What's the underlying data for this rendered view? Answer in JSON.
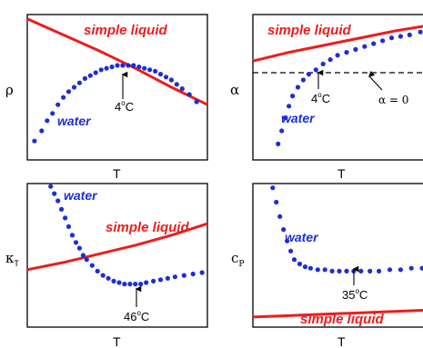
{
  "colors": {
    "liquid": "#ee1c1c",
    "water": "#1a2fd6",
    "axis": "#000000"
  },
  "chart_data": [
    {
      "type": "line",
      "ylabel": "ρ",
      "xlabel": "T",
      "xlim": [
        0,
        1
      ],
      "ylim": [
        0,
        1
      ],
      "series": [
        {
          "name": "simple liquid",
          "kind": "line",
          "x": [
            0,
            0.2,
            0.4,
            0.6,
            0.8,
            1.0
          ],
          "y": [
            0.97,
            0.86,
            0.75,
            0.63,
            0.5,
            0.38
          ]
        },
        {
          "name": "water",
          "kind": "scatter",
          "x": [
            0.04,
            0.08,
            0.11,
            0.14,
            0.17,
            0.2,
            0.23,
            0.26,
            0.29,
            0.32,
            0.35,
            0.38,
            0.41,
            0.44,
            0.47,
            0.5,
            0.53,
            0.56,
            0.59,
            0.62,
            0.65,
            0.68,
            0.71,
            0.74,
            0.77,
            0.8,
            0.83,
            0.86,
            0.9,
            0.94
          ],
          "y": [
            0.13,
            0.2,
            0.27,
            0.32,
            0.38,
            0.43,
            0.47,
            0.5,
            0.53,
            0.56,
            0.58,
            0.6,
            0.62,
            0.63,
            0.64,
            0.65,
            0.65,
            0.65,
            0.65,
            0.64,
            0.63,
            0.62,
            0.61,
            0.59,
            0.57,
            0.55,
            0.52,
            0.49,
            0.45,
            0.4
          ]
        }
      ],
      "annotations": [
        {
          "text": "4°C",
          "x": 0.5,
          "y": 0.65
        }
      ]
    },
    {
      "type": "line",
      "ylabel": "α",
      "xlabel": "T",
      "xlim": [
        0,
        1
      ],
      "ylim": [
        0,
        1
      ],
      "series": [
        {
          "name": "simple liquid",
          "kind": "line",
          "x": [
            0,
            0.2,
            0.4,
            0.6,
            0.8,
            1.0
          ],
          "y": [
            0.68,
            0.74,
            0.79,
            0.84,
            0.89,
            0.93
          ]
        },
        {
          "name": "water",
          "kind": "scatter",
          "x": [
            0.14,
            0.16,
            0.18,
            0.2,
            0.22,
            0.25,
            0.28,
            0.31,
            0.35,
            0.39,
            0.43,
            0.47,
            0.52,
            0.57,
            0.62,
            0.67,
            0.72,
            0.77,
            0.82,
            0.87,
            0.93,
            0.98
          ],
          "y": [
            0.11,
            0.2,
            0.29,
            0.37,
            0.44,
            0.5,
            0.55,
            0.59,
            0.62,
            0.66,
            0.69,
            0.72,
            0.74,
            0.76,
            0.78,
            0.8,
            0.82,
            0.84,
            0.85,
            0.86,
            0.88,
            0.89
          ]
        },
        {
          "name": "α = 0",
          "kind": "dashed",
          "x": [
            0,
            1
          ],
          "y": [
            0.6,
            0.6
          ]
        }
      ],
      "annotations": [
        {
          "text": "4°C",
          "x": 0.39,
          "y": 0.6
        },
        {
          "text": "α = 0",
          "x": 0.8,
          "y": 0.6
        }
      ]
    },
    {
      "type": "line",
      "ylabel": "κT",
      "xlabel": "T",
      "xlim": [
        0,
        1
      ],
      "ylim": [
        0,
        1
      ],
      "series": [
        {
          "name": "simple liquid",
          "kind": "line",
          "x": [
            0,
            0.2,
            0.4,
            0.6,
            0.8,
            1.0
          ],
          "y": [
            0.4,
            0.45,
            0.51,
            0.57,
            0.64,
            0.72
          ]
        },
        {
          "name": "water",
          "kind": "scatter",
          "x": [
            0.13,
            0.15,
            0.17,
            0.19,
            0.21,
            0.23,
            0.25,
            0.27,
            0.29,
            0.31,
            0.33,
            0.36,
            0.39,
            0.42,
            0.45,
            0.48,
            0.51,
            0.54,
            0.57,
            0.6,
            0.63,
            0.66,
            0.7,
            0.74,
            0.78,
            0.82,
            0.87,
            0.92,
            0.97
          ],
          "y": [
            0.98,
            0.93,
            0.88,
            0.82,
            0.76,
            0.7,
            0.64,
            0.59,
            0.55,
            0.5,
            0.47,
            0.43,
            0.39,
            0.36,
            0.34,
            0.32,
            0.31,
            0.3,
            0.3,
            0.3,
            0.3,
            0.31,
            0.32,
            0.33,
            0.34,
            0.35,
            0.36,
            0.37,
            0.38
          ]
        }
      ],
      "annotations": [
        {
          "text": "46°C",
          "x": 0.6,
          "y": 0.3
        }
      ]
    },
    {
      "type": "line",
      "ylabel": "cP",
      "xlabel": "T",
      "xlim": [
        0,
        1
      ],
      "ylim": [
        0,
        1
      ],
      "series": [
        {
          "name": "simple liquid",
          "kind": "line",
          "x": [
            0,
            0.2,
            0.4,
            0.6,
            0.8,
            1.0
          ],
          "y": [
            0.07,
            0.08,
            0.09,
            0.1,
            0.11,
            0.12
          ]
        },
        {
          "name": "water",
          "kind": "scatter",
          "x": [
            0.11,
            0.13,
            0.15,
            0.17,
            0.19,
            0.21,
            0.23,
            0.26,
            0.29,
            0.32,
            0.36,
            0.4,
            0.44,
            0.48,
            0.52,
            0.56,
            0.6,
            0.65,
            0.7,
            0.76,
            0.82,
            0.88,
            0.94,
            0.99
          ],
          "y": [
            0.97,
            0.87,
            0.77,
            0.68,
            0.6,
            0.53,
            0.47,
            0.44,
            0.42,
            0.41,
            0.4,
            0.4,
            0.39,
            0.39,
            0.39,
            0.39,
            0.39,
            0.39,
            0.39,
            0.4,
            0.4,
            0.41,
            0.41,
            0.42
          ]
        }
      ],
      "annotations": [
        {
          "text": "35°C",
          "x": 0.6,
          "y": 0.39
        }
      ]
    }
  ],
  "labels": {
    "simple_liquid": "simple liquid",
    "water": "water",
    "a1": "4",
    "a2": "4",
    "a3": "46",
    "a4": "35",
    "deg": "o",
    "C": "C",
    "alpha_zero": "α = 0",
    "rho": "ρ",
    "alpha": "α",
    "kappa": "κ",
    "kappa_sub": "T",
    "cp": "c",
    "cp_sub": "P",
    "xlabel": "T"
  }
}
